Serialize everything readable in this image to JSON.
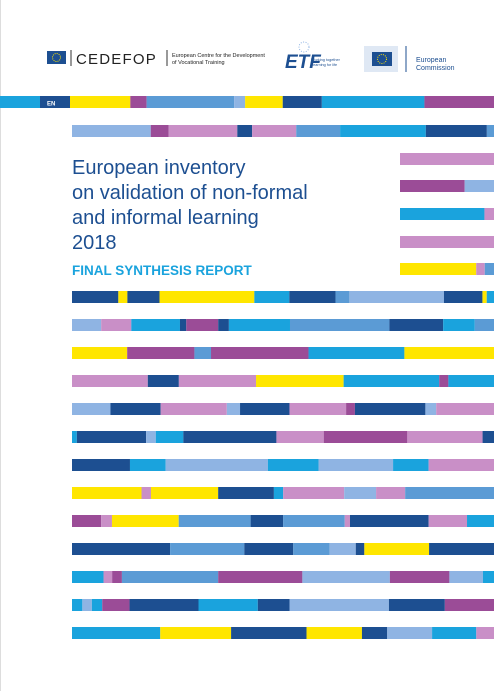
{
  "header": {
    "cedefop": "CEDEFOP",
    "cedefop_tagline": [
      "European Centre for the Development",
      "of Vocational Training"
    ],
    "etf": "ETF",
    "etf_tagline": [
      "Working together",
      "Learning for life"
    ],
    "commission": [
      "European",
      "Commission"
    ]
  },
  "language": "EN",
  "title": [
    "European inventory",
    "on validation of non-formal",
    "and informal learning",
    "2018"
  ],
  "subtitle": "FINAL SYNTHESIS REPORT"
}
